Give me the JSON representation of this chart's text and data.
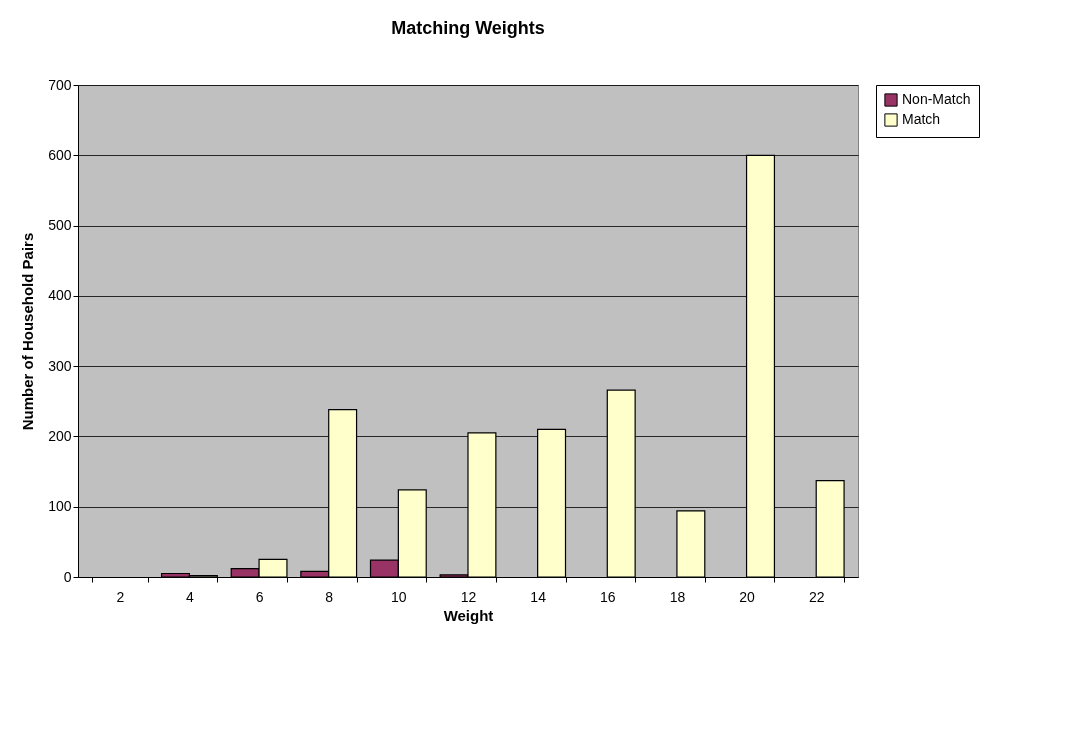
{
  "chart_data": {
    "type": "bar",
    "title": "Matching Weights",
    "xlabel": "Weight",
    "ylabel": "Number of Household Pairs",
    "categories": [
      "2",
      "4",
      "6",
      "8",
      "10",
      "12",
      "14",
      "16",
      "18",
      "20",
      "22"
    ],
    "series": [
      {
        "name": "Non-Match",
        "color": "#993366",
        "values": [
          null,
          5,
          12,
          8,
          24,
          3,
          null,
          null,
          null,
          null,
          null
        ]
      },
      {
        "name": "Match",
        "color": "#ffffcc",
        "values": [
          null,
          2,
          25,
          238,
          124,
          205,
          210,
          266,
          94,
          600,
          137
        ]
      }
    ],
    "ylim": [
      0,
      700
    ],
    "yticks": [
      0,
      100,
      200,
      300,
      400,
      500,
      600,
      700
    ],
    "grid": "y",
    "legend": "right"
  }
}
